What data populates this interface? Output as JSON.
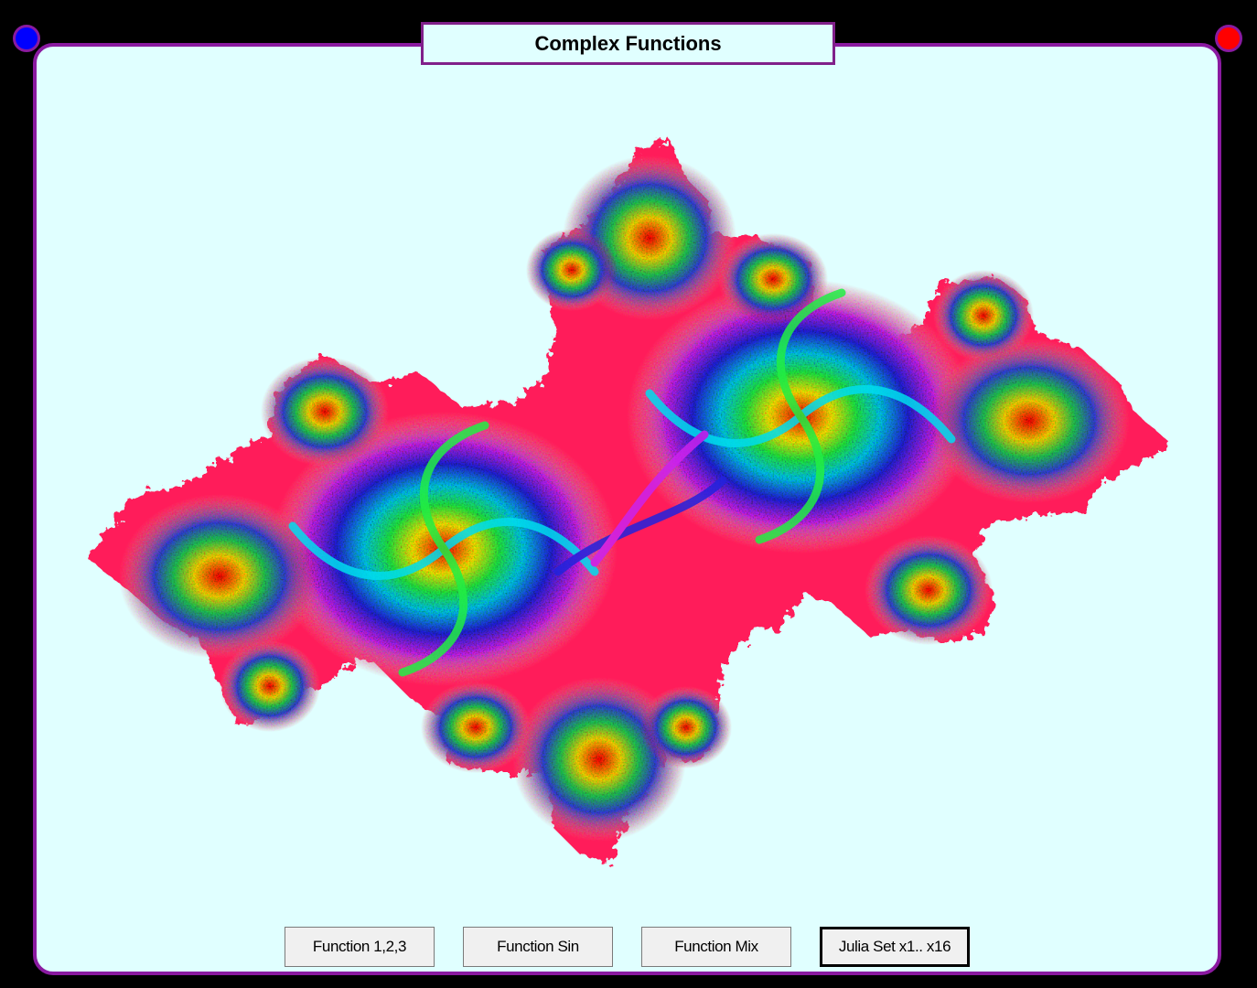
{
  "window": {
    "title": "Complex Functions"
  },
  "colors": {
    "background": "#000000",
    "panel": "#e0ffff",
    "panel_border": "#8a1aa0",
    "dot_left": "#0000ff",
    "dot_right": "#ff0000",
    "fractal_base": "#ff1f5a"
  },
  "icons": {
    "left_dot": "blue-circle-icon",
    "right_dot": "red-circle-icon"
  },
  "buttons": [
    {
      "label": "Function 1,2,3",
      "active": false
    },
    {
      "label": "Function Sin",
      "active": false
    },
    {
      "label": "Function Mix",
      "active": false
    },
    {
      "label": "Julia Set x1.. x16",
      "active": true
    }
  ]
}
